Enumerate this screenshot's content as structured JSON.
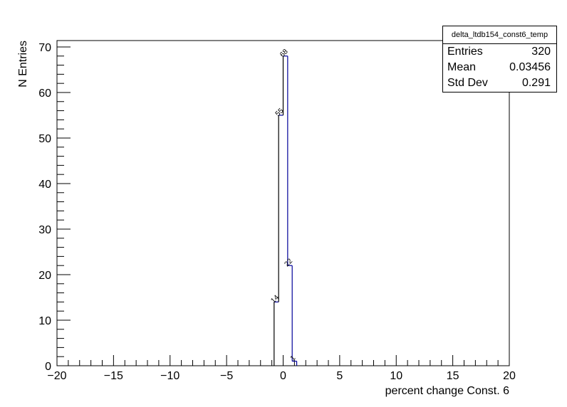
{
  "chart_data": {
    "type": "histogram",
    "xlabel": "percent change Const. 6",
    "ylabel": "N Entries",
    "xlim": [
      -20,
      20
    ],
    "ylim": [
      0,
      71.4
    ],
    "x_ticks": [
      -20,
      -15,
      -10,
      -5,
      0,
      5,
      10,
      15,
      20
    ],
    "y_ticks": [
      0,
      10,
      20,
      30,
      40,
      50,
      60,
      70
    ],
    "bin_edges": [
      -0.8,
      -0.4,
      0,
      0.4,
      0.8,
      1.2
    ],
    "values": [
      14,
      55,
      68,
      22,
      1
    ],
    "data_labels": [
      "14",
      "55",
      "68",
      "22",
      "1"
    ],
    "line_color": "#000099",
    "grid": false,
    "stats": {
      "title": "delta_ltdb154_const6_temp",
      "rows": [
        {
          "label": "Entries",
          "value": "320"
        },
        {
          "label": "Mean",
          "value": "0.03456"
        },
        {
          "label": "Std Dev",
          "value": "0.291"
        }
      ]
    }
  }
}
